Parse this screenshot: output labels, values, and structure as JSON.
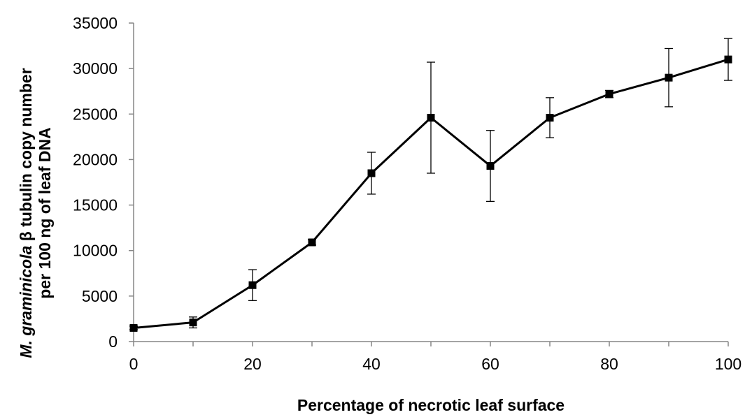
{
  "chart_data": {
    "type": "line",
    "title": "",
    "xlabel": "Percentage of necrotic leaf surface",
    "ylabel_italic": "M. graminicola",
    "ylabel_rest": " β tubulin copy number",
    "ylabel_line2": "per 100 ng of leaf DNA",
    "xlim": [
      0,
      100
    ],
    "ylim": [
      0,
      35000
    ],
    "x_ticks": [
      "0",
      "20",
      "40",
      "60",
      "80",
      "100"
    ],
    "y_ticks": [
      "0",
      "5000",
      "10000",
      "15000",
      "20000",
      "25000",
      "30000",
      "35000"
    ],
    "grid": false,
    "legend": "none",
    "series": [
      {
        "color": "#000000",
        "marker": "square",
        "x": [
          0,
          10,
          20,
          30,
          40,
          50,
          60,
          70,
          80,
          90,
          100
        ],
        "y": [
          1500,
          2100,
          6200,
          10900,
          18500,
          24600,
          19300,
          24600,
          27200,
          29000,
          31000
        ],
        "error": [
          200,
          600,
          1700,
          300,
          2300,
          6100,
          3900,
          2200,
          400,
          3200,
          2300
        ]
      }
    ]
  }
}
